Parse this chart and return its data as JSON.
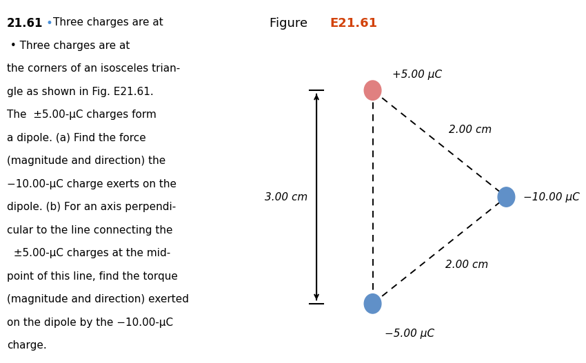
{
  "fig_width": 8.16,
  "fig_height": 5.18,
  "bg_color": "#ffffff",
  "title_color_bold": "#d2420a",
  "bullet_color": "#4a90d9",
  "pos_charge_color": "#e08080",
  "neg_charge_color": "#6090c8",
  "neg10_charge_color": "#6090c8",
  "arrow_color": "#000000",
  "dashed_color": "#000000",
  "label_pos5": "+5.00 μC",
  "label_neg5": "−5.00 μC",
  "label_neg10": "−10.00 μC",
  "label_3cm": "3.00 cm",
  "label_2cm_top": "2.00 cm",
  "label_2cm_bot": "2.00 cm",
  "text_lines": [
    [
      "21.61",
      "bold",
      12
    ],
    [
      " • Three charges are at",
      "normal",
      11
    ],
    [
      "the corners of an isosceles trian-",
      "normal",
      11
    ],
    [
      "gle as shown in Fig. E21.61.",
      "normal",
      11
    ],
    [
      "The  ±5.00-μC charges form",
      "normal",
      11
    ],
    [
      "a dipole. (a) Find the force",
      "normal",
      11
    ],
    [
      "(magnitude and direction) the",
      "normal",
      11
    ],
    [
      "−10.00-μC charge exerts on the",
      "normal",
      11
    ],
    [
      "dipole. (b) For an axis perpendi-",
      "normal",
      11
    ],
    [
      "cular to the line connecting the",
      "normal",
      11
    ],
    [
      "  ±5.00-μC charges at the mid-",
      "normal",
      11
    ],
    [
      "point of this line, find the torque",
      "normal",
      11
    ],
    [
      "(magnitude and direction) exerted",
      "normal",
      11
    ],
    [
      "on the dipole by the −10.00-μC",
      "normal",
      11
    ],
    [
      "charge.",
      "normal",
      11
    ]
  ]
}
